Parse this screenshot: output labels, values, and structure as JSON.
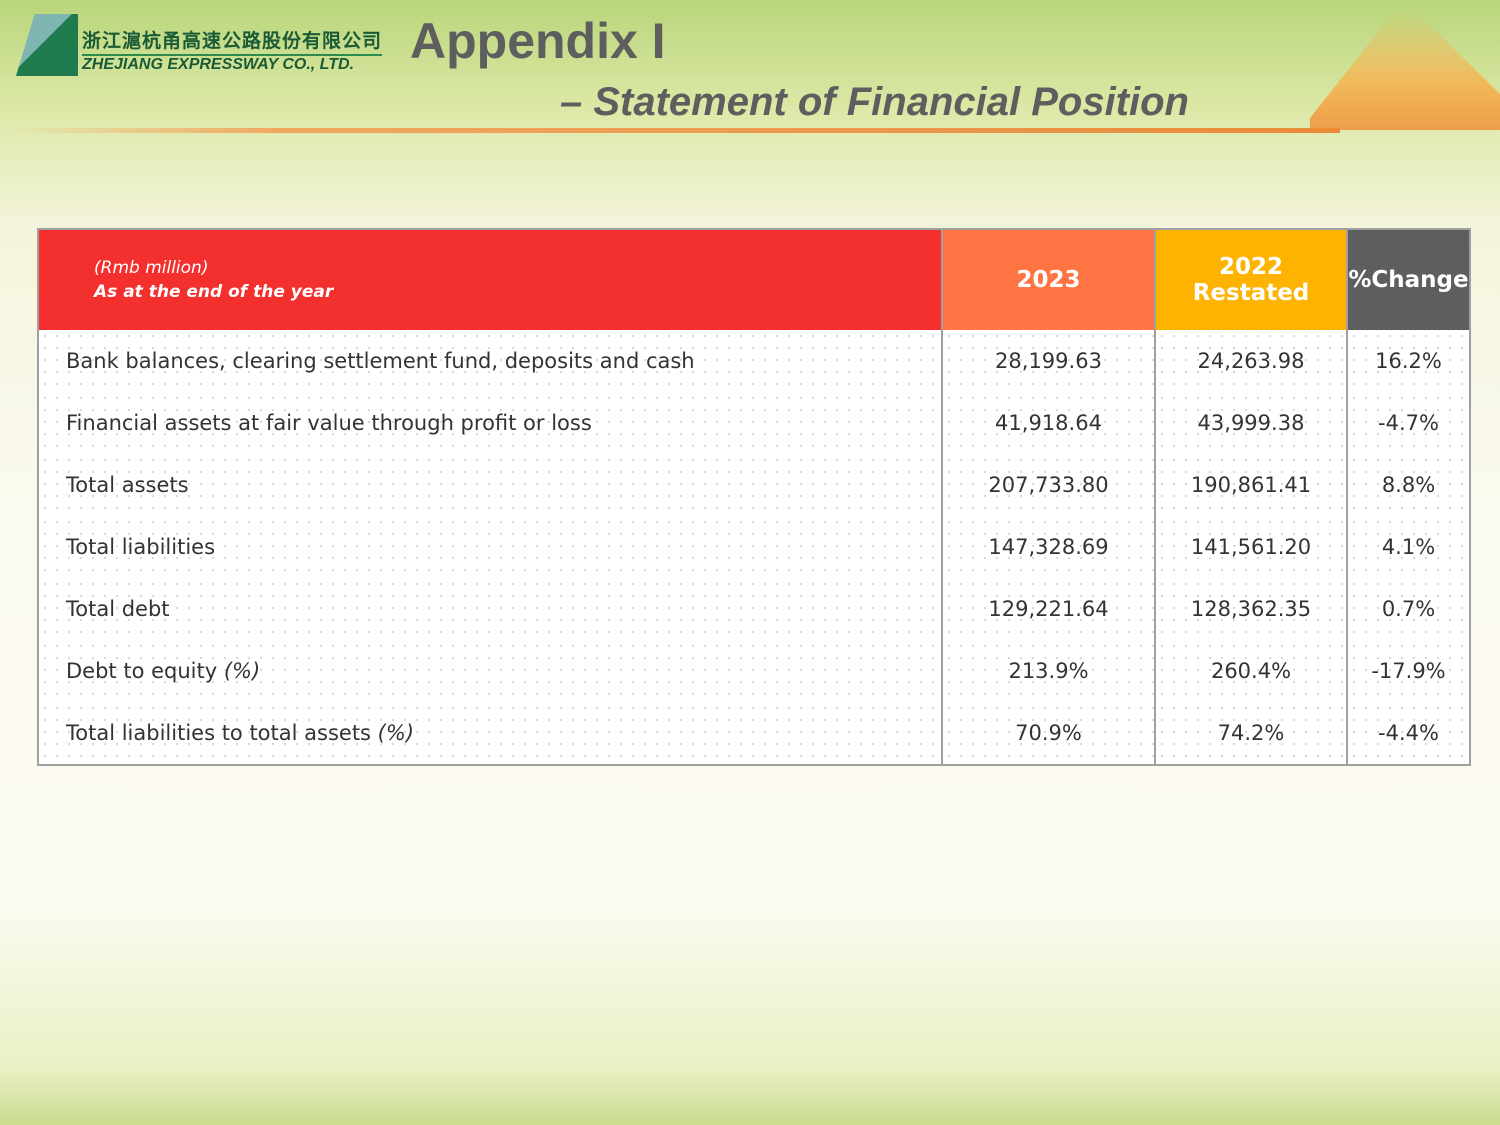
{
  "header": {
    "logo_cn": "浙江滬杭甬高速公路股份有限公司",
    "logo_en": "ZHEJIANG EXPRESSWAY CO., LTD.",
    "title": "Appendix I",
    "subtitle": "– Statement of Financial Position"
  },
  "table": {
    "unit": "(Rmb million)",
    "caption": "As at the end of the year",
    "columns": [
      "2023",
      "2022",
      "Restated",
      "%Change"
    ],
    "header_colors": {
      "label": "#f4302f",
      "y2023": "#fe7443",
      "y2022": "#feb300",
      "change": "#5e5e5e"
    },
    "rows": [
      {
        "label": "Bank balances, clearing settlement fund, deposits and cash",
        "suffix": "",
        "v2023": "28,199.63",
        "v2022": "24,263.98",
        "change": "16.2%"
      },
      {
        "label": "Financial assets at fair value through profit or loss",
        "suffix": "",
        "v2023": "41,918.64",
        "v2022": "43,999.38",
        "change": "-4.7%"
      },
      {
        "label": "Total assets",
        "suffix": "",
        "v2023": "207,733.80",
        "v2022": "190,861.41",
        "change": "8.8%"
      },
      {
        "label": "Total liabilities",
        "suffix": "",
        "v2023": "147,328.69",
        "v2022": "141,561.20",
        "change": "4.1%"
      },
      {
        "label": "Total debt",
        "suffix": "",
        "v2023": "129,221.64",
        "v2022": "128,362.35",
        "change": "0.7%"
      },
      {
        "label": "Debt to equity ",
        "suffix": "(%)",
        "v2023": "213.9%",
        "v2022": "260.4%",
        "change": "-17.9%"
      },
      {
        "label": "Total liabilities to total assets ",
        "suffix": "(%)",
        "v2023": "70.9%",
        "v2022": "74.2%",
        "change": "-4.4%"
      }
    ]
  }
}
